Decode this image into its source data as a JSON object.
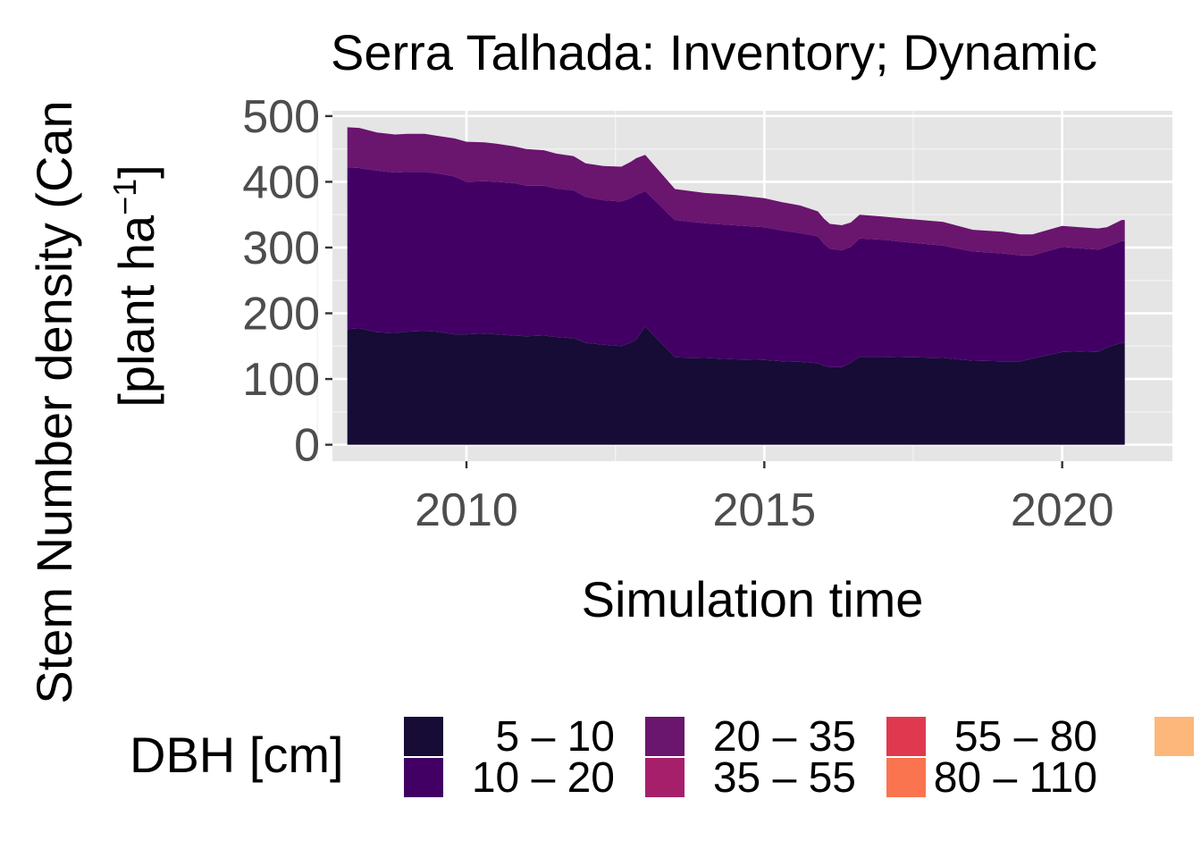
{
  "chart_data": {
    "type": "area",
    "stacked": true,
    "title": "Serra Talhada: Inventory; Dynamic",
    "xlabel": "Simulation time",
    "ylabel_line1": "Stem Number density (Can",
    "ylabel_line2_prefix": "[plant ha",
    "ylabel_line2_sup": "−1",
    "ylabel_line2_suffix": "]",
    "xlim": [
      2007.75,
      2021.85
    ],
    "ylim": [
      -25,
      508
    ],
    "x_ticks": [
      2010,
      2015,
      2020
    ],
    "x_tick_labels": [
      "2010",
      "2015",
      "2020"
    ],
    "y_ticks": [
      0,
      100,
      200,
      300,
      400,
      500
    ],
    "y_tick_labels": [
      "0",
      "100",
      "200",
      "300",
      "400",
      "500"
    ],
    "x_minor_ticks": [
      2007.5,
      2012.5,
      2017.5
    ],
    "y_minor_ticks": [
      50,
      150,
      250,
      350,
      450
    ],
    "grid": true,
    "legend": {
      "title": "DBH [cm]",
      "placement": "bottom",
      "entries": [
        {
          "label": "5 – 10",
          "color": "#160c36"
        },
        {
          "label": "10 – 20",
          "color": "#420065"
        },
        {
          "label": "20 – 35",
          "color": "#6a156e"
        },
        {
          "label": "35 – 55",
          "color": "#a61f6b"
        },
        {
          "label": "55 – 80",
          "color": "#e0394f"
        },
        {
          "label": "80 – 110",
          "color": "#f9744f"
        },
        {
          "label": "",
          "color": "#fdb77a"
        }
      ]
    },
    "x": [
      2008.0,
      2008.2,
      2008.5,
      2008.8,
      2009.0,
      2009.3,
      2009.5,
      2009.8,
      2010.0,
      2010.3,
      2010.5,
      2010.8,
      2011.0,
      2011.3,
      2011.5,
      2011.8,
      2012.0,
      2012.3,
      2012.6,
      2012.75,
      2012.85,
      2013.0,
      2013.5,
      2014.0,
      2014.5,
      2015.0,
      2015.3,
      2015.6,
      2015.9,
      2016.0,
      2016.1,
      2016.3,
      2016.45,
      2016.6,
      2017.0,
      2017.5,
      2018.0,
      2018.5,
      2019.0,
      2019.3,
      2019.5,
      2020.0,
      2020.3,
      2020.6,
      2020.75,
      2021.0,
      2021.05
    ],
    "series": [
      {
        "values": [
          176,
          177,
          171,
          170,
          172,
          173,
          172,
          168,
          168,
          169,
          168,
          166,
          165,
          166,
          164,
          162,
          155,
          152,
          150,
          155,
          160,
          180,
          133,
          132,
          130,
          129,
          127,
          126,
          124,
          120,
          118,
          118,
          125,
          134,
          134,
          133,
          132,
          128,
          127,
          127,
          131,
          141,
          142,
          141,
          148,
          155,
          155
        ]
      },
      {
        "values": [
          246,
          244,
          246,
          244,
          243,
          242,
          241,
          240,
          232,
          232,
          232,
          232,
          229,
          228,
          226,
          225,
          222,
          220,
          220,
          220,
          220,
          206,
          209,
          205,
          204,
          202,
          199,
          196,
          193,
          186,
          180,
          178,
          176,
          180,
          178,
          174,
          171,
          166,
          164,
          161,
          157,
          160,
          157,
          156,
          153,
          155,
          155
        ]
      },
      {
        "values": [
          61,
          61,
          58,
          58,
          58,
          58,
          57,
          58,
          61,
          59,
          58,
          56,
          56,
          54,
          53,
          52,
          51,
          52,
          53,
          55,
          56,
          55,
          47,
          46,
          46,
          44,
          43,
          42,
          38,
          38,
          38,
          38,
          37,
          36,
          35,
          36,
          36,
          33,
          33,
          32,
          32,
          32,
          32,
          32,
          30,
          32,
          32
        ]
      }
    ]
  }
}
